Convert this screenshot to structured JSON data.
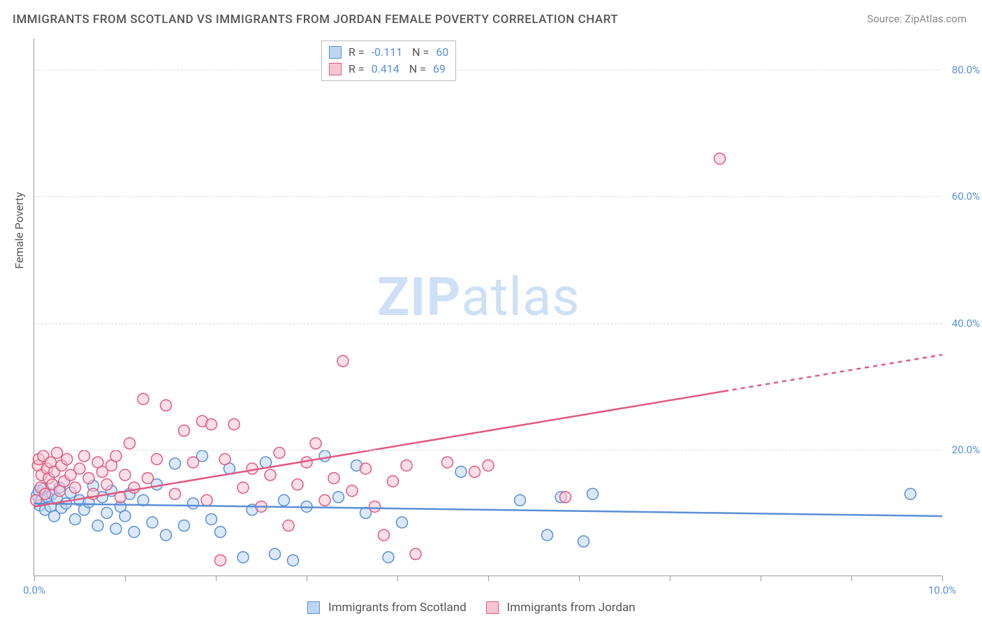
{
  "title": "IMMIGRANTS FROM SCOTLAND VS IMMIGRANTS FROM JORDAN FEMALE POVERTY CORRELATION CHART",
  "source": "Source: ZipAtlas.com",
  "ylabel": "Female Poverty",
  "watermark": {
    "zip": "ZIP",
    "atlas": "atlas"
  },
  "chart": {
    "type": "scatter",
    "xlim": [
      0,
      10
    ],
    "ylim": [
      0,
      85
    ],
    "background_color": "#ffffff",
    "grid_color": "#dddddd",
    "grid_dash": "4,4",
    "axis_color": "#999999",
    "label_color": "#555555",
    "tick_color": "#5a8fd6",
    "yticks": [
      20,
      40,
      60,
      80
    ],
    "ytick_labels": [
      "20.0%",
      "40.0%",
      "60.0%",
      "80.0%"
    ],
    "xticks": [
      0,
      1,
      2,
      3,
      4,
      5,
      6,
      7,
      8,
      9,
      10
    ],
    "xtick_labels_shown": {
      "0": "0.0%",
      "10": "10.0%"
    },
    "marker_radius": 8,
    "marker_stroke_width": 1.5,
    "trend_stroke_width": 2.5,
    "series": [
      {
        "name": "Immigrants from Scotland",
        "fill": "#bcd6f2",
        "stroke": "#5a8fd6",
        "fill_opacity": 0.55,
        "legend": {
          "R": "-0.111",
          "N": "60"
        },
        "trend": {
          "x1": 0,
          "y1": 11.5,
          "x2": 10,
          "y2": 9.5,
          "dash_from_x": null
        },
        "points": [
          [
            0.03,
            12.8
          ],
          [
            0.05,
            13.5
          ],
          [
            0.06,
            11.2
          ],
          [
            0.08,
            12.0
          ],
          [
            0.1,
            13.8
          ],
          [
            0.12,
            10.5
          ],
          [
            0.15,
            12.5
          ],
          [
            0.18,
            11.0
          ],
          [
            0.2,
            13.0
          ],
          [
            0.22,
            9.5
          ],
          [
            0.25,
            12.2
          ],
          [
            0.28,
            14.0
          ],
          [
            0.3,
            10.8
          ],
          [
            0.35,
            11.5
          ],
          [
            0.4,
            13.2
          ],
          [
            0.45,
            9.0
          ],
          [
            0.5,
            12.0
          ],
          [
            0.55,
            10.5
          ],
          [
            0.6,
            11.7
          ],
          [
            0.65,
            14.3
          ],
          [
            0.7,
            8.0
          ],
          [
            0.75,
            12.5
          ],
          [
            0.8,
            10.0
          ],
          [
            0.85,
            13.5
          ],
          [
            0.9,
            7.5
          ],
          [
            0.95,
            11.0
          ],
          [
            1.0,
            9.5
          ],
          [
            1.05,
            13.0
          ],
          [
            1.1,
            7.0
          ],
          [
            1.2,
            12.0
          ],
          [
            1.3,
            8.5
          ],
          [
            1.35,
            14.5
          ],
          [
            1.45,
            6.5
          ],
          [
            1.55,
            17.8
          ],
          [
            1.65,
            8.0
          ],
          [
            1.75,
            11.5
          ],
          [
            1.85,
            19.0
          ],
          [
            1.95,
            9.0
          ],
          [
            2.05,
            7.0
          ],
          [
            2.15,
            17.0
          ],
          [
            2.3,
            3.0
          ],
          [
            2.4,
            10.5
          ],
          [
            2.55,
            18.0
          ],
          [
            2.65,
            3.5
          ],
          [
            2.75,
            12.0
          ],
          [
            2.85,
            2.5
          ],
          [
            3.0,
            11.0
          ],
          [
            3.2,
            19.0
          ],
          [
            3.35,
            12.5
          ],
          [
            3.55,
            17.5
          ],
          [
            3.65,
            10.0
          ],
          [
            3.9,
            3.0
          ],
          [
            4.05,
            8.5
          ],
          [
            4.7,
            16.5
          ],
          [
            5.35,
            12.0
          ],
          [
            5.65,
            6.5
          ],
          [
            5.8,
            12.5
          ],
          [
            6.05,
            5.5
          ],
          [
            6.15,
            13.0
          ],
          [
            9.65,
            13.0
          ]
        ]
      },
      {
        "name": "Immigrants from Jordan",
        "fill": "#f7c4d2",
        "stroke": "#e05a82",
        "fill_opacity": 0.55,
        "legend": {
          "R": "0.414",
          "N": "69"
        },
        "trend": {
          "x1": 0,
          "y1": 11.0,
          "x2": 10,
          "y2": 35.0,
          "dash_from_x": 7.6
        },
        "points": [
          [
            0.02,
            12.0
          ],
          [
            0.04,
            17.5
          ],
          [
            0.05,
            18.5
          ],
          [
            0.07,
            14.0
          ],
          [
            0.08,
            16.0
          ],
          [
            0.1,
            19.0
          ],
          [
            0.12,
            13.0
          ],
          [
            0.14,
            17.0
          ],
          [
            0.16,
            15.5
          ],
          [
            0.18,
            18.0
          ],
          [
            0.2,
            14.5
          ],
          [
            0.22,
            16.5
          ],
          [
            0.25,
            19.5
          ],
          [
            0.28,
            13.5
          ],
          [
            0.3,
            17.5
          ],
          [
            0.33,
            15.0
          ],
          [
            0.36,
            18.5
          ],
          [
            0.4,
            16.0
          ],
          [
            0.45,
            14.0
          ],
          [
            0.5,
            17.0
          ],
          [
            0.55,
            19.0
          ],
          [
            0.6,
            15.5
          ],
          [
            0.65,
            13.0
          ],
          [
            0.7,
            18.0
          ],
          [
            0.75,
            16.5
          ],
          [
            0.8,
            14.5
          ],
          [
            0.85,
            17.5
          ],
          [
            0.9,
            19.0
          ],
          [
            0.95,
            12.5
          ],
          [
            1.0,
            16.0
          ],
          [
            1.05,
            21.0
          ],
          [
            1.1,
            14.0
          ],
          [
            1.2,
            28.0
          ],
          [
            1.25,
            15.5
          ],
          [
            1.35,
            18.5
          ],
          [
            1.45,
            27.0
          ],
          [
            1.55,
            13.0
          ],
          [
            1.65,
            23.0
          ],
          [
            1.75,
            18.0
          ],
          [
            1.85,
            24.5
          ],
          [
            1.9,
            12.0
          ],
          [
            1.95,
            24.0
          ],
          [
            2.05,
            2.5
          ],
          [
            2.1,
            18.5
          ],
          [
            2.2,
            24.0
          ],
          [
            2.3,
            14.0
          ],
          [
            2.4,
            17.0
          ],
          [
            2.5,
            11.0
          ],
          [
            2.6,
            16.0
          ],
          [
            2.7,
            19.5
          ],
          [
            2.8,
            8.0
          ],
          [
            2.9,
            14.5
          ],
          [
            3.0,
            18.0
          ],
          [
            3.1,
            21.0
          ],
          [
            3.2,
            12.0
          ],
          [
            3.3,
            15.5
          ],
          [
            3.4,
            34.0
          ],
          [
            3.5,
            13.5
          ],
          [
            3.65,
            17.0
          ],
          [
            3.75,
            11.0
          ],
          [
            3.85,
            6.5
          ],
          [
            3.95,
            15.0
          ],
          [
            4.1,
            17.5
          ],
          [
            4.2,
            3.5
          ],
          [
            4.55,
            18.0
          ],
          [
            4.85,
            16.5
          ],
          [
            5.0,
            17.5
          ],
          [
            5.85,
            12.5
          ],
          [
            7.55,
            66.0
          ]
        ]
      }
    ]
  },
  "legend_bottom": [
    {
      "swatch_fill": "#bcd6f2",
      "swatch_stroke": "#5a8fd6",
      "label": "Immigrants from Scotland"
    },
    {
      "swatch_fill": "#f7c4d2",
      "swatch_stroke": "#e05a82",
      "label": "Immigrants from Jordan"
    }
  ]
}
